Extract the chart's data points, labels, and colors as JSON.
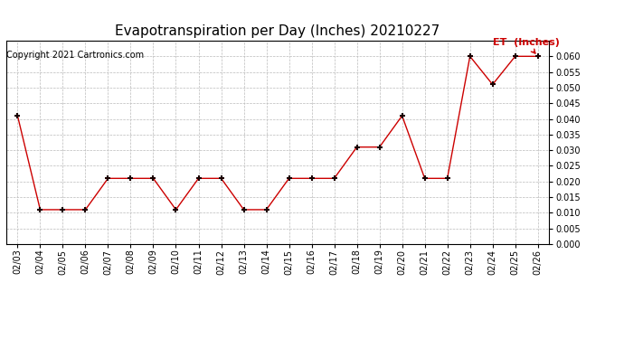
{
  "title": "Evapotranspiration per Day (Inches) 20210227",
  "copyright": "Copyright 2021 Cartronics.com",
  "legend_label": "ET  (Inches)",
  "dates": [
    "02/03",
    "02/04",
    "02/05",
    "02/06",
    "02/07",
    "02/08",
    "02/09",
    "02/10",
    "02/11",
    "02/12",
    "02/13",
    "02/14",
    "02/15",
    "02/16",
    "02/17",
    "02/18",
    "02/19",
    "02/20",
    "02/21",
    "02/22",
    "02/23",
    "02/24",
    "02/25",
    "02/26"
  ],
  "values": [
    0.041,
    0.011,
    0.011,
    0.011,
    0.021,
    0.021,
    0.021,
    0.011,
    0.021,
    0.021,
    0.011,
    0.011,
    0.021,
    0.021,
    0.021,
    0.031,
    0.031,
    0.041,
    0.021,
    0.021,
    0.06,
    0.051,
    0.06,
    0.06
  ],
  "line_color": "#cc0000",
  "marker_color": "#1a0000",
  "marker": "+",
  "ylim": [
    0.0,
    0.065
  ],
  "yticks": [
    0.0,
    0.005,
    0.01,
    0.015,
    0.02,
    0.025,
    0.03,
    0.035,
    0.04,
    0.045,
    0.05,
    0.055,
    0.06
  ],
  "bg_color": "#ffffff",
  "grid_color": "#bbbbbb",
  "title_fontsize": 11,
  "copyright_fontsize": 7,
  "tick_fontsize": 7,
  "legend_color": "#cc0000",
  "legend_fontsize": 8
}
